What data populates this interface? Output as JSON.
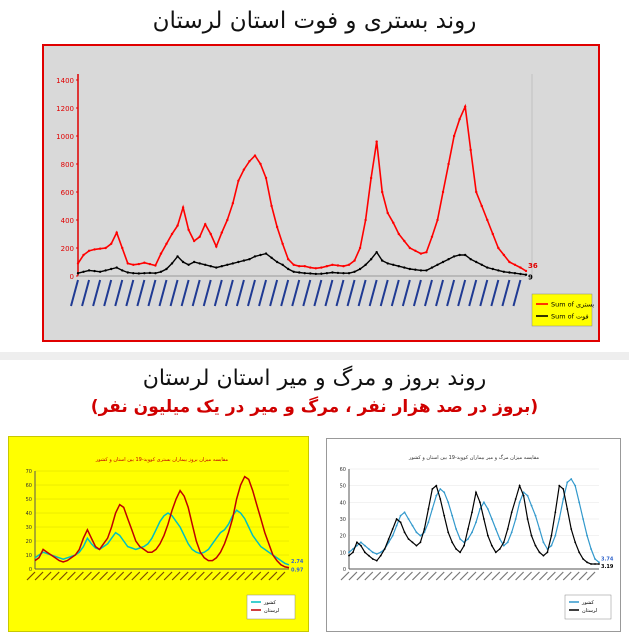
{
  "title_top": "روند بستری و فوت استان لرستان",
  "title_bottom": "روند بروز و مرگ و میر استان لرستان",
  "subtitle_bottom": "(بروز در صد هزار نفر ، مرگ و میر در یک میلیون نفر)",
  "colors": {
    "red": "#ff0000",
    "black": "#000000",
    "cyan": "#00c0c0",
    "blue": "#3399cc",
    "dark_red": "#c00000"
  },
  "chart_data": [
    {
      "type": "line",
      "yticks": [
        0,
        200,
        400,
        600,
        800,
        1000,
        1200,
        1400
      ],
      "ylim": [
        0,
        1400
      ],
      "legend_position": "bottom-right",
      "legend_items": [
        "بستری",
        "فوت"
      ],
      "end_labels": [
        "36",
        "9"
      ],
      "series": [
        {
          "name": "Sum of بستری",
          "color": "#ff0000",
          "values": [
            90,
            150,
            180,
            190,
            195,
            200,
            230,
            310,
            200,
            90,
            80,
            85,
            95,
            85,
            75,
            160,
            230,
            300,
            360,
            490,
            330,
            250,
            280,
            370,
            300,
            210,
            310,
            400,
            520,
            680,
            760,
            820,
            860,
            800,
            700,
            500,
            350,
            230,
            120,
            80,
            70,
            70,
            60,
            55,
            60,
            70,
            80,
            75,
            70,
            80,
            110,
            200,
            400,
            700,
            960,
            600,
            450,
            380,
            300,
            250,
            200,
            180,
            160,
            170,
            280,
            400,
            600,
            800,
            1000,
            1120,
            1210,
            900,
            600,
            500,
            400,
            300,
            200,
            150,
            100,
            80,
            60,
            36
          ]
        },
        {
          "name": "Sum of فوت",
          "color": "#000000",
          "values": [
            20,
            30,
            40,
            35,
            30,
            40,
            50,
            60,
            40,
            25,
            20,
            18,
            20,
            22,
            20,
            30,
            50,
            90,
            140,
            100,
            80,
            100,
            90,
            80,
            70,
            60,
            70,
            80,
            90,
            100,
            110,
            120,
            140,
            150,
            160,
            130,
            100,
            80,
            50,
            30,
            25,
            20,
            18,
            15,
            16,
            20,
            25,
            22,
            20,
            20,
            30,
            50,
            80,
            120,
            170,
            110,
            90,
            80,
            70,
            60,
            50,
            45,
            40,
            40,
            60,
            80,
            100,
            120,
            140,
            150,
            150,
            120,
            100,
            80,
            60,
            50,
            40,
            30,
            25,
            20,
            15,
            9
          ]
        }
      ]
    },
    {
      "type": "line",
      "title": "مقایسه میزان بروز بیماران بستری کووید-19 بین استان و کشور",
      "yticks": [
        0,
        10,
        20,
        30,
        40,
        50,
        60,
        70
      ],
      "ylim": [
        0,
        70
      ],
      "legend_items": [
        "کشور",
        "لرستان"
      ],
      "end_labels": [
        "2.74",
        "0.97"
      ],
      "series": [
        {
          "name": "کشور",
          "color": "#00c0c0",
          "values": [
            8,
            10,
            12,
            11,
            10,
            9,
            8,
            7,
            8,
            9,
            10,
            12,
            16,
            22,
            18,
            15,
            14,
            16,
            18,
            22,
            26,
            24,
            20,
            16,
            15,
            14,
            15,
            16,
            18,
            22,
            28,
            34,
            38,
            40,
            38,
            34,
            30,
            24,
            18,
            14,
            12,
            11,
            12,
            14,
            18,
            22,
            26,
            28,
            32,
            38,
            42,
            40,
            36,
            30,
            24,
            20,
            16,
            14,
            12,
            10,
            8,
            6,
            4,
            3
          ]
        },
        {
          "name": "لرستان",
          "color": "#c00000",
          "values": [
            6,
            8,
            14,
            12,
            10,
            8,
            6,
            5,
            6,
            8,
            10,
            14,
            22,
            28,
            22,
            16,
            14,
            18,
            22,
            30,
            40,
            46,
            44,
            36,
            28,
            20,
            16,
            14,
            12,
            12,
            14,
            18,
            24,
            32,
            42,
            50,
            56,
            52,
            44,
            32,
            20,
            12,
            8,
            6,
            6,
            8,
            12,
            18,
            26,
            36,
            50,
            60,
            66,
            64,
            56,
            46,
            36,
            26,
            18,
            10,
            6,
            3,
            1.5,
            1
          ]
        }
      ]
    },
    {
      "type": "line",
      "title": "مقایسه میزان مرگ و میر بیماران کووید-19 بین استان و کشور",
      "yticks": [
        0,
        10,
        20,
        30,
        40,
        50,
        60
      ],
      "ylim": [
        0,
        60
      ],
      "legend_items": [
        "کشور",
        "لرستان"
      ],
      "end_labels": [
        "3.74",
        "3.19"
      ],
      "series": [
        {
          "name": "کشور",
          "color": "#3399cc",
          "values": [
            10,
            12,
            14,
            16,
            14,
            12,
            10,
            9,
            10,
            12,
            16,
            20,
            26,
            32,
            34,
            30,
            26,
            22,
            20,
            22,
            28,
            36,
            44,
            48,
            46,
            40,
            32,
            24,
            18,
            16,
            18,
            22,
            28,
            36,
            40,
            36,
            30,
            24,
            18,
            14,
            16,
            22,
            30,
            40,
            46,
            44,
            38,
            32,
            24,
            16,
            12,
            14,
            20,
            30,
            42,
            52,
            54,
            50,
            40,
            30,
            20,
            12,
            6,
            4
          ]
        },
        {
          "name": "لرستان",
          "color": "#000000",
          "values": [
            8,
            10,
            16,
            14,
            10,
            8,
            6,
            5,
            8,
            12,
            18,
            24,
            30,
            28,
            22,
            18,
            16,
            14,
            16,
            24,
            36,
            48,
            50,
            42,
            32,
            22,
            16,
            12,
            10,
            14,
            24,
            34,
            46,
            40,
            30,
            20,
            14,
            10,
            12,
            16,
            24,
            34,
            42,
            50,
            44,
            30,
            20,
            14,
            10,
            8,
            10,
            20,
            34,
            50,
            48,
            36,
            24,
            16,
            10,
            6,
            4,
            3,
            3,
            3
          ]
        }
      ]
    }
  ]
}
